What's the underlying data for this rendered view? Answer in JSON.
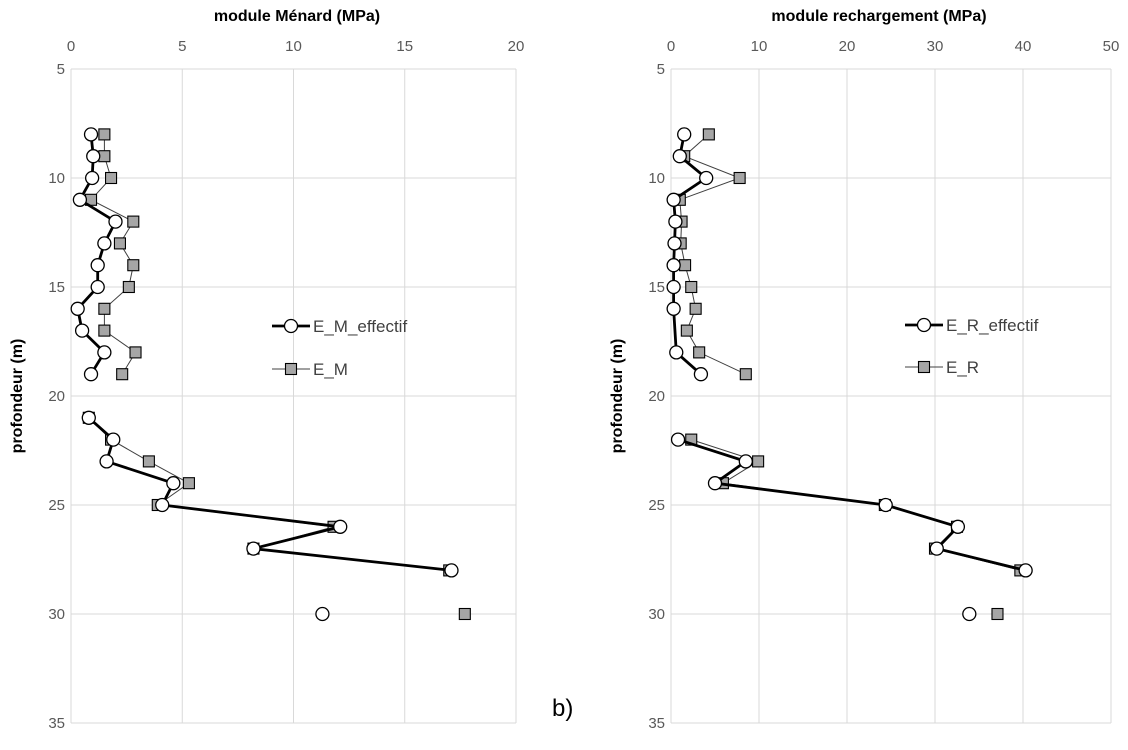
{
  "panel_label": "b)",
  "chart_data": [
    {
      "type": "line",
      "title": "module Ménard  (MPa)",
      "ylabel": "profondeur (m)",
      "xlim": [
        0,
        20
      ],
      "ylim": [
        5,
        35
      ],
      "y_inverted": true,
      "x_axis_position": "top",
      "x_ticks": [
        0,
        5,
        10,
        15,
        20
      ],
      "y_ticks": [
        5,
        10,
        15,
        20,
        25,
        30,
        35
      ],
      "grid": "horizontal and vertical",
      "legend_position": "right",
      "series": [
        {
          "name": "E_M_effectif",
          "marker": "circle",
          "line": "thick-black",
          "segments": [
            [
              [
                0.9,
                8
              ],
              [
                1.0,
                9
              ],
              [
                0.95,
                10
              ],
              [
                0.4,
                11
              ],
              [
                2.0,
                12
              ],
              [
                1.5,
                13
              ],
              [
                1.2,
                14
              ],
              [
                1.2,
                15
              ],
              [
                0.3,
                16
              ],
              [
                0.5,
                17
              ],
              [
                1.5,
                18
              ],
              [
                0.9,
                19
              ]
            ],
            [
              [
                0.8,
                21
              ],
              [
                1.9,
                22
              ],
              [
                1.6,
                23
              ],
              [
                4.6,
                24
              ],
              [
                4.1,
                25
              ],
              [
                12.1,
                26
              ],
              [
                8.2,
                27
              ],
              [
                17.1,
                28
              ]
            ],
            [
              [
                11.3,
                30
              ]
            ]
          ]
        },
        {
          "name": "E_M",
          "marker": "square",
          "line": "thin-gray",
          "segments": [
            [
              [
                1.5,
                8
              ],
              [
                1.5,
                9
              ],
              [
                1.8,
                10
              ],
              [
                0.9,
                11
              ],
              [
                2.8,
                12
              ],
              [
                2.2,
                13
              ],
              [
                2.8,
                14
              ],
              [
                2.6,
                15
              ],
              [
                1.5,
                16
              ],
              [
                1.5,
                17
              ],
              [
                2.9,
                18
              ],
              [
                2.3,
                19
              ]
            ],
            [
              [
                0.8,
                21
              ],
              [
                1.8,
                22
              ],
              [
                3.5,
                23
              ],
              [
                5.3,
                24
              ],
              [
                3.9,
                25
              ],
              [
                11.8,
                26
              ],
              [
                8.2,
                27
              ],
              [
                17.0,
                28
              ]
            ],
            [
              [
                17.7,
                30
              ]
            ]
          ]
        }
      ]
    },
    {
      "type": "line",
      "title": "module rechargement (MPa)",
      "ylabel": "profondeur (m)",
      "xlim": [
        0,
        50
      ],
      "ylim": [
        5,
        35
      ],
      "y_inverted": true,
      "x_axis_position": "top",
      "x_ticks": [
        0,
        10,
        20,
        30,
        40,
        50
      ],
      "y_ticks": [
        5,
        10,
        15,
        20,
        25,
        30,
        35
      ],
      "grid": "horizontal and vertical",
      "legend_position": "right",
      "series": [
        {
          "name": "E_R_effectif",
          "marker": "circle",
          "line": "thick-black",
          "segments": [
            [
              [
                1.5,
                8
              ],
              [
                1.0,
                9
              ],
              [
                4.0,
                10
              ],
              [
                0.3,
                11
              ],
              [
                0.5,
                12
              ],
              [
                0.4,
                13
              ],
              [
                0.3,
                14
              ],
              [
                0.3,
                15
              ],
              [
                0.3,
                16
              ],
              [
                0.6,
                18
              ],
              [
                3.4,
                19
              ]
            ],
            [
              [
                0.8,
                22
              ],
              [
                8.5,
                23
              ],
              [
                5.0,
                24
              ],
              [
                24.4,
                25
              ],
              [
                32.6,
                26
              ],
              [
                30.2,
                27
              ],
              [
                40.3,
                28
              ]
            ],
            [
              [
                33.9,
                30
              ]
            ]
          ]
        },
        {
          "name": "E_R",
          "marker": "square",
          "line": "thin-gray",
          "segments": [
            [
              [
                4.3,
                8
              ],
              [
                1.5,
                9
              ],
              [
                7.8,
                10
              ],
              [
                1.0,
                11
              ],
              [
                1.2,
                12
              ],
              [
                1.1,
                13
              ],
              [
                1.6,
                14
              ],
              [
                2.3,
                15
              ],
              [
                2.8,
                16
              ],
              [
                1.8,
                17
              ],
              [
                3.2,
                18
              ],
              [
                8.5,
                19
              ]
            ],
            [
              [
                2.3,
                22
              ],
              [
                9.9,
                23
              ],
              [
                5.9,
                24
              ],
              [
                24.3,
                25
              ],
              [
                32.5,
                26
              ],
              [
                30.0,
                27
              ],
              [
                39.7,
                28
              ]
            ],
            [
              [
                37.1,
                30
              ]
            ]
          ]
        }
      ]
    }
  ]
}
